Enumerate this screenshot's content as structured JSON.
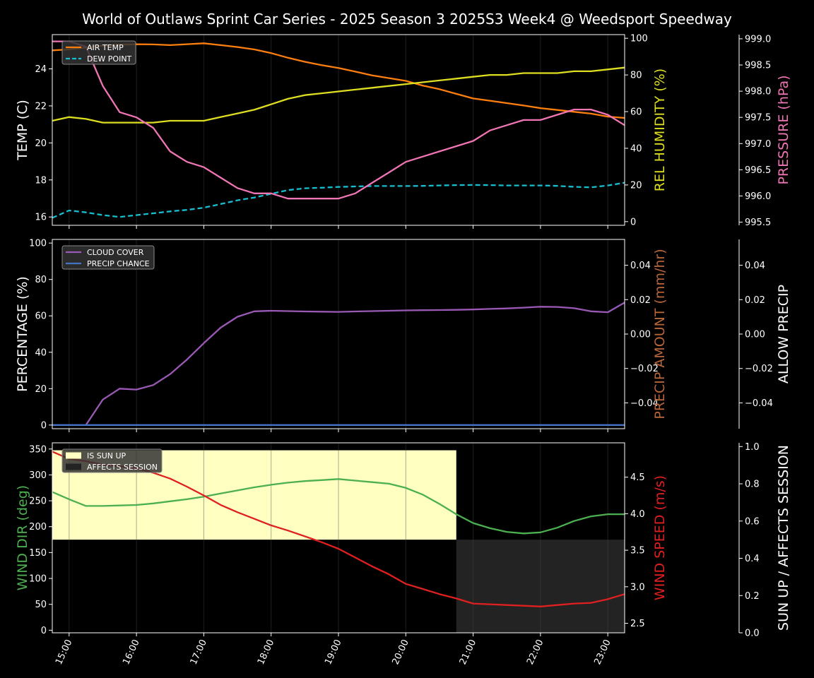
{
  "title": "World of Outlaws Sprint Car Series - 2025 Season 3 2025S3 Week4 @ Weedsport Speedway",
  "chart_data": [
    {
      "type": "line",
      "panel": "weather-temperature",
      "x": [
        "14:45",
        "15:00",
        "15:15",
        "15:30",
        "15:45",
        "16:00",
        "16:15",
        "16:30",
        "16:45",
        "17:00",
        "17:15",
        "17:30",
        "17:45",
        "18:00",
        "18:15",
        "18:30",
        "18:45",
        "19:00",
        "19:15",
        "19:30",
        "19:45",
        "20:00",
        "20:15",
        "20:30",
        "20:45",
        "21:00",
        "21:15",
        "21:30",
        "21:45",
        "22:00",
        "22:15",
        "22:30",
        "22:45",
        "23:00",
        "23:15"
      ],
      "x_ticks": [
        "15:00",
        "16:00",
        "17:00",
        "18:00",
        "19:00",
        "20:00",
        "21:00",
        "22:00",
        "23:00"
      ],
      "ylabel_left": "TEMP (C)",
      "ylim_left": [
        15.55,
        25.85
      ],
      "yticks_left": [
        "16",
        "18",
        "20",
        "22",
        "24"
      ],
      "ylabel_right": "REL HUMIDITY (%)",
      "ylim_right": [
        -2,
        102
      ],
      "yticks_right": [
        "0",
        "20",
        "40",
        "60",
        "80",
        "100"
      ],
      "ylabel_far": "PRESSURE (hPa)",
      "ylim_far": [
        995.44,
        999.08
      ],
      "yticks_far": [
        "995.5",
        "996.0",
        "996.5",
        "997.0",
        "997.5",
        "998.0",
        "998.5",
        "999.0"
      ],
      "legend": "top-left",
      "series": [
        {
          "name": "AIR TEMP",
          "axis": "left",
          "color": "#ff7f0e",
          "dash": false,
          "values": [
            25.0,
            25.05,
            25.15,
            25.25,
            25.3,
            25.33,
            25.32,
            25.28,
            25.33,
            25.38,
            25.28,
            25.18,
            25.05,
            24.85,
            24.6,
            24.38,
            24.2,
            24.05,
            23.85,
            23.65,
            23.5,
            23.35,
            23.1,
            22.9,
            22.65,
            22.4,
            22.28,
            22.15,
            22.02,
            21.88,
            21.78,
            21.68,
            21.58,
            21.42,
            21.35
          ]
        },
        {
          "name": "DEW POINT",
          "axis": "left",
          "color": "#17becf",
          "dash": true,
          "values": [
            15.95,
            16.35,
            16.25,
            16.1,
            16.0,
            16.1,
            16.2,
            16.3,
            16.38,
            16.5,
            16.7,
            16.9,
            17.05,
            17.25,
            17.45,
            17.55,
            17.58,
            17.62,
            17.65,
            17.67,
            17.67,
            17.67,
            17.68,
            17.7,
            17.72,
            17.73,
            17.72,
            17.7,
            17.7,
            17.7,
            17.68,
            17.63,
            17.6,
            17.7,
            17.85
          ]
        },
        {
          "name": "REL HUMIDITY",
          "axis": "right",
          "color": "#dede21",
          "dash": false,
          "values": [
            55,
            57,
            56,
            54,
            54,
            54,
            54,
            55,
            55,
            55,
            57,
            59,
            61,
            64,
            67,
            69,
            70,
            71,
            72,
            73,
            74,
            75,
            76,
            77,
            78,
            79,
            80,
            80,
            81,
            81,
            81,
            82,
            82,
            83,
            84
          ]
        },
        {
          "name": "PRESSURE",
          "axis": "far",
          "color": "#f075b4",
          "dash": false,
          "values": [
            998.95,
            998.95,
            998.85,
            998.1,
            997.6,
            997.5,
            997.3,
            996.85,
            996.65,
            996.55,
            996.35,
            996.15,
            996.05,
            996.05,
            995.95,
            995.95,
            995.95,
            995.95,
            996.05,
            996.25,
            996.45,
            996.65,
            996.75,
            996.85,
            996.95,
            997.05,
            997.25,
            997.35,
            997.45,
            997.45,
            997.55,
            997.65,
            997.65,
            997.55,
            997.35
          ]
        }
      ]
    },
    {
      "type": "line",
      "panel": "clouds-precip",
      "x": [
        "14:45",
        "15:00",
        "15:15",
        "15:30",
        "15:45",
        "16:00",
        "16:15",
        "16:30",
        "16:45",
        "17:00",
        "17:15",
        "17:30",
        "17:45",
        "18:00",
        "18:15",
        "18:30",
        "18:45",
        "19:00",
        "19:15",
        "19:30",
        "19:45",
        "20:00",
        "20:15",
        "20:30",
        "20:45",
        "21:00",
        "21:15",
        "21:30",
        "21:45",
        "22:00",
        "22:15",
        "22:30",
        "22:45",
        "23:00",
        "23:15"
      ],
      "ylabel_left": "PERCENTAGE (%)",
      "ylim_left": [
        -2,
        102
      ],
      "yticks_left": [
        "0",
        "20",
        "40",
        "60",
        "80",
        "100"
      ],
      "ylabel_right": "PRECIP AMOUNT (mm/hr)",
      "ylim_right": [
        -0.055,
        0.055
      ],
      "yticks_right": [
        "−0.04",
        "−0.02",
        "0.00",
        "0.02",
        "0.04"
      ],
      "ylabel_far": "ALLOW PRECIP",
      "ylim_far": [
        -0.055,
        0.055
      ],
      "yticks_far": [
        "−0.04",
        "−0.02",
        "0.00",
        "0.02",
        "0.04"
      ],
      "legend": "top-left",
      "series": [
        {
          "name": "CLOUD COVER",
          "axis": "left",
          "color": "#9b59b6",
          "dash": false,
          "values": [
            null,
            null,
            0,
            14,
            20,
            19.5,
            22,
            28,
            36,
            45,
            53.5,
            59.5,
            62.5,
            62.8,
            62.6,
            62.4,
            62.3,
            62.2,
            62.4,
            62.6,
            62.8,
            63,
            63.1,
            63.2,
            63.3,
            63.5,
            63.8,
            64.1,
            64.5,
            65,
            64.9,
            64.2,
            62.5,
            62,
            67.3
          ]
        },
        {
          "name": "PRECIP CHANCE",
          "axis": "left",
          "color": "#4472c4",
          "dash": false,
          "values": [
            0,
            0,
            0,
            0,
            0,
            0,
            0,
            0,
            0,
            0,
            0,
            0,
            0,
            0,
            0,
            0,
            0,
            0,
            0,
            0,
            0,
            0,
            0,
            0,
            0,
            0,
            0,
            0,
            0,
            0,
            0,
            0,
            0,
            0,
            0
          ]
        }
      ]
    },
    {
      "type": "line",
      "panel": "wind-sun",
      "x": [
        "14:45",
        "15:00",
        "15:15",
        "15:30",
        "15:45",
        "16:00",
        "16:15",
        "16:30",
        "16:45",
        "17:00",
        "17:15",
        "17:30",
        "17:45",
        "18:00",
        "18:15",
        "18:30",
        "18:45",
        "19:00",
        "19:15",
        "19:30",
        "19:45",
        "20:00",
        "20:15",
        "20:30",
        "20:45",
        "21:00",
        "21:15",
        "21:30",
        "21:45",
        "22:00",
        "22:15",
        "22:30",
        "22:45",
        "23:00",
        "23:15"
      ],
      "ylabel_left": "WIND DIR (deg)",
      "ylim_left": [
        -5,
        362
      ],
      "yticks_left": [
        "0",
        "50",
        "100",
        "150",
        "200",
        "250",
        "300",
        "350"
      ],
      "ylabel_right": "WIND SPEED (m/s)",
      "ylim_right": [
        2.37,
        4.97
      ],
      "yticks_right": [
        "2.5",
        "3.0",
        "3.5",
        "4.0",
        "4.5"
      ],
      "ylabel_far": "SUN UP / AFFECTS SESSION",
      "ylim_far": [
        0,
        1.02
      ],
      "yticks_far": [
        "0.0",
        "0.2",
        "0.4",
        "0.6",
        "0.8",
        "1.0"
      ],
      "legend": "top-left",
      "bands": [
        {
          "name": "IS SUN UP",
          "color": "#ffffc2",
          "from": "14:45",
          "to": "20:45",
          "y_from": 0.5,
          "y_to": 0.98
        },
        {
          "name": "AFFECTS SESSION",
          "color": "#232323",
          "from": "20:45",
          "to": "23:15",
          "y_from": 0.0,
          "y_to": 0.5
        }
      ],
      "series": [
        {
          "name": "WIND DIR",
          "axis": "left",
          "color": "#4caf50",
          "dash": false,
          "values": [
            267,
            253,
            240,
            240,
            241,
            242,
            245,
            249,
            253,
            258,
            264,
            270,
            276,
            281,
            285,
            288,
            290,
            292,
            289,
            286,
            283,
            275,
            262,
            244,
            224,
            207,
            197,
            190,
            187,
            189,
            198,
            211,
            220,
            224,
            224
          ]
        },
        {
          "name": "WIND SPEED",
          "axis": "right",
          "color": "#e02020",
          "dash": false,
          "values": [
            4.85,
            4.75,
            4.72,
            4.67,
            4.65,
            4.62,
            4.56,
            4.48,
            4.37,
            4.25,
            4.12,
            4.02,
            3.93,
            3.84,
            3.77,
            3.69,
            3.61,
            3.52,
            3.4,
            3.28,
            3.17,
            3.04,
            2.97,
            2.9,
            2.84,
            2.77,
            2.76,
            2.75,
            2.74,
            2.73,
            2.75,
            2.77,
            2.78,
            2.83,
            2.9
          ]
        }
      ]
    }
  ]
}
